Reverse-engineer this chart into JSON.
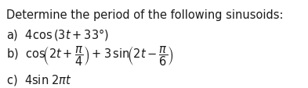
{
  "background_color": "#ffffff",
  "title_text": "Determine the period of the following sinusoids:",
  "line_a": "a)  $4\\mathrm{cos}\\,(3t + 33°)$",
  "line_b": "b)  $\\mathrm{cos}\\!\\left(2t + \\dfrac{\\pi}{4}\\right) + 3\\,\\mathrm{sin}\\!\\left(2t - \\dfrac{\\pi}{6}\\right)$",
  "line_c": "c)  $4\\mathrm{sin}\\;2\\pi t$",
  "text_color": "#1a1a1a",
  "fontsize": 10.5
}
